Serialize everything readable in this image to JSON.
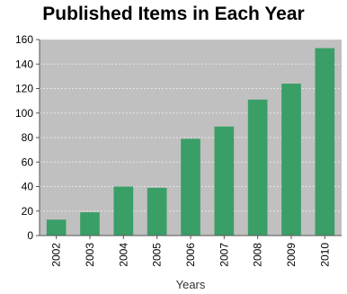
{
  "chart_data": {
    "type": "bar",
    "title": "Published Items in Each Year",
    "xlabel": "Years",
    "ylabel": "",
    "categories": [
      "2002",
      "2003",
      "2004",
      "2005",
      "2006",
      "2007",
      "2008",
      "2009",
      "2010"
    ],
    "values": [
      13,
      19,
      40,
      39,
      79,
      89,
      111,
      124,
      153
    ],
    "ylim": [
      0,
      160
    ],
    "yticks": [
      0,
      20,
      40,
      60,
      80,
      100,
      120,
      140,
      160
    ],
    "grid": true,
    "legend": "none",
    "colors": {
      "bar": "#3a9e67",
      "plot_background": "#c0c0c0",
      "grid": "#e6e6e6"
    }
  }
}
